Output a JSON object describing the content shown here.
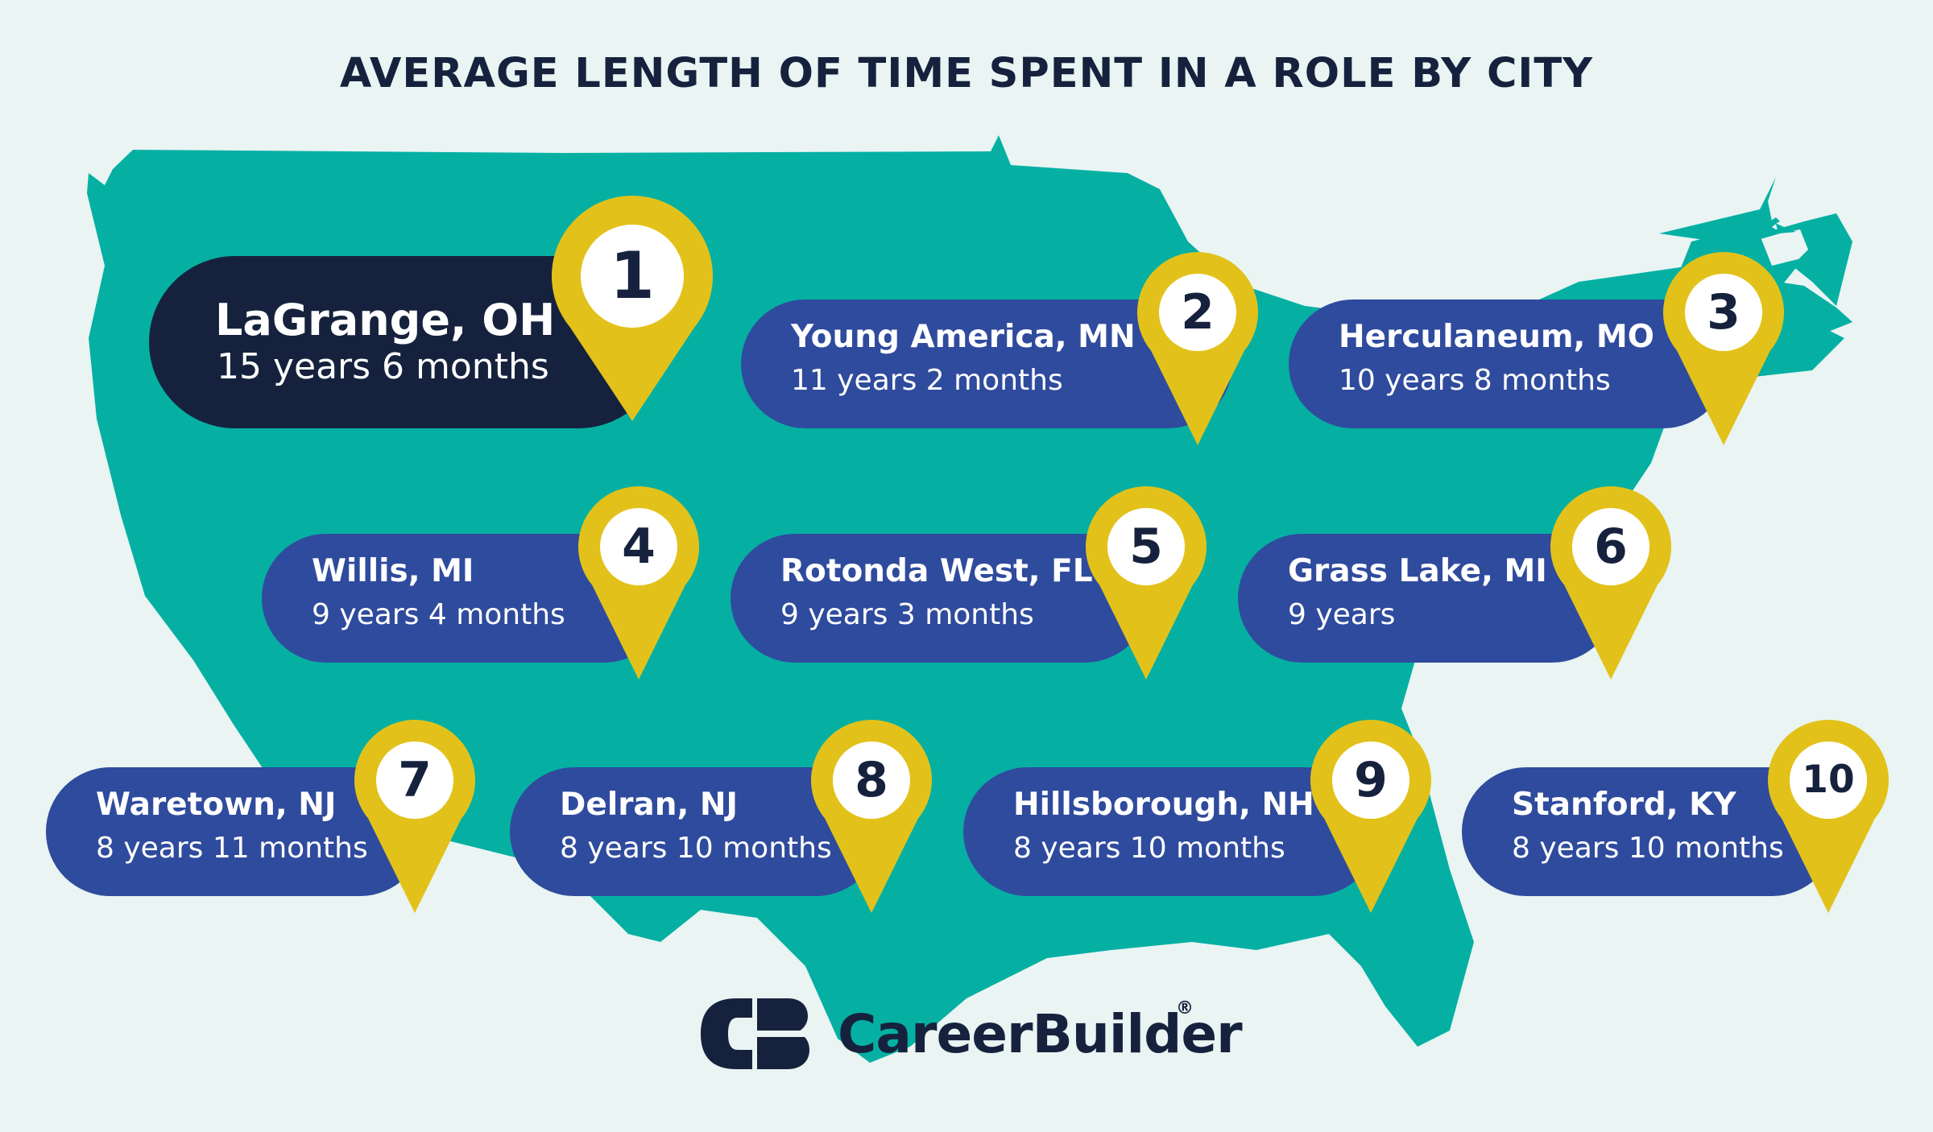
{
  "title": "AVERAGE LENGTH OF TIME SPENT IN A ROLE BY CITY",
  "colors": {
    "background": "#e9f4f3",
    "map_fill": "#05b0a3",
    "card_primary": "#16223d",
    "card": "#2f4b9d",
    "pin": "#e2c21a",
    "text_dark": "#16223d"
  },
  "map": {
    "region": "United States",
    "icon": "us-map-silhouette"
  },
  "rankings": [
    {
      "rank": "1",
      "city": "LaGrange, OH",
      "duration": "15 years 6 months"
    },
    {
      "rank": "2",
      "city": "Young America, MN",
      "duration": "11 years 2 months"
    },
    {
      "rank": "3",
      "city": "Herculaneum, MO",
      "duration": "10 years 8 months"
    },
    {
      "rank": "4",
      "city": "Willis, MI",
      "duration": "9 years 4 months"
    },
    {
      "rank": "5",
      "city": "Rotonda West, FL",
      "duration": "9 years 3 months"
    },
    {
      "rank": "6",
      "city": "Grass Lake, MI",
      "duration": "9 years"
    },
    {
      "rank": "7",
      "city": "Waretown, NJ",
      "duration": "8 years 11 months"
    },
    {
      "rank": "8",
      "city": "Delran, NJ",
      "duration": "8 years 10 months"
    },
    {
      "rank": "9",
      "city": "Hillsborough, NH",
      "duration": "8 years 10 months"
    },
    {
      "rank": "10",
      "city": "Stanford, KY",
      "duration": "8 years 10 months"
    }
  ],
  "logo": {
    "text": "CareerBuilder",
    "registered": "®",
    "icon": "careerbuilder-cb-logo-icon"
  }
}
